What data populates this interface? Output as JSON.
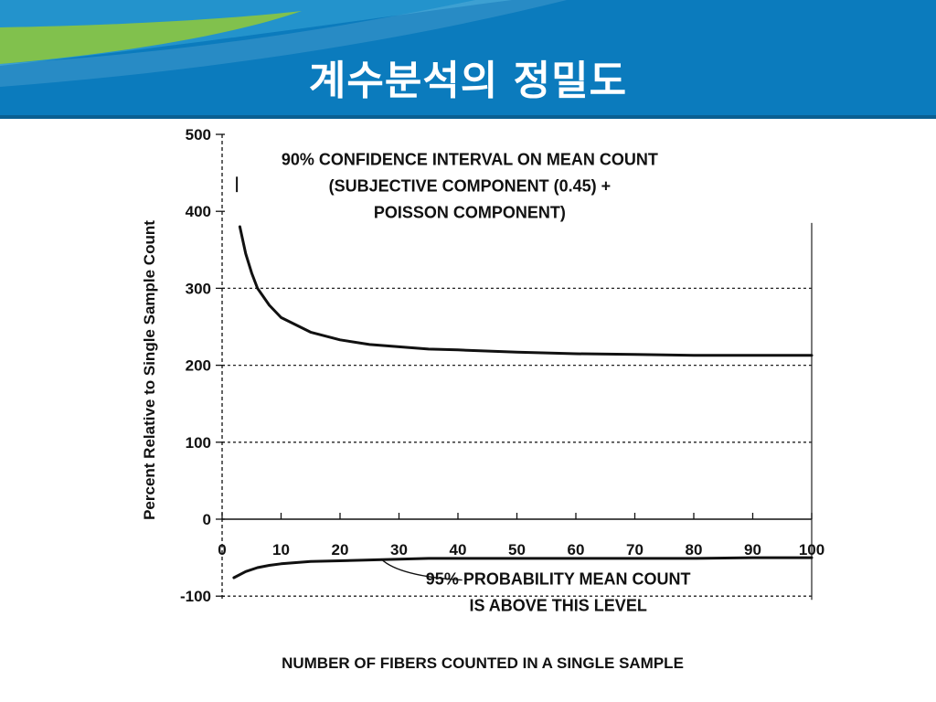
{
  "slide": {
    "title": "계수분석의 정밀도",
    "banner_color": "#0b7bbd",
    "accent_color": "#8cc63f"
  },
  "chart_data": {
    "type": "line",
    "xlabel": "NUMBER OF FIBERS COUNTED IN A SINGLE SAMPLE",
    "ylabel": "Percent Relative to Single Sample Count",
    "xlim": [
      0,
      100
    ],
    "ylim": [
      -100,
      500
    ],
    "x_ticks": [
      0,
      10,
      20,
      30,
      40,
      50,
      60,
      70,
      80,
      90,
      100
    ],
    "y_ticks": [
      -100,
      0,
      100,
      200,
      300,
      400,
      500
    ],
    "grid": "dashed horizontal lines at 300, 200, 100, -100",
    "series": [
      {
        "name": "upper",
        "x": [
          3,
          4,
          5,
          6,
          8,
          10,
          15,
          20,
          25,
          30,
          35,
          40,
          50,
          60,
          70,
          80,
          90,
          100
        ],
        "values": [
          380,
          345,
          320,
          300,
          278,
          262,
          243,
          233,
          227,
          224,
          221,
          220,
          217,
          215,
          214,
          213,
          213,
          213
        ]
      },
      {
        "name": "lower",
        "x": [
          2,
          4,
          6,
          8,
          10,
          15,
          20,
          25,
          30,
          35,
          40,
          50,
          60,
          70,
          80,
          90,
          100
        ],
        "values": [
          -76,
          -68,
          -63,
          -60,
          -58,
          -55,
          -54,
          -53,
          -52,
          -51,
          -51,
          -51,
          -51,
          -51,
          -51,
          -50,
          -50
        ]
      }
    ],
    "annotations": [
      {
        "lines": [
          "90% CONFIDENCE INTERVAL ON MEAN COUNT",
          "(SUBJECTIVE COMPONENT (0.45) +",
          "POISSON COMPONENT)"
        ],
        "at": [
          42,
          460
        ]
      },
      {
        "lines": [
          "95% PROBABILITY MEAN COUNT",
          "IS ABOVE THIS LEVEL"
        ],
        "at": [
          57,
          -85
        ],
        "pointer_from": [
          27,
          -52
        ]
      }
    ]
  }
}
